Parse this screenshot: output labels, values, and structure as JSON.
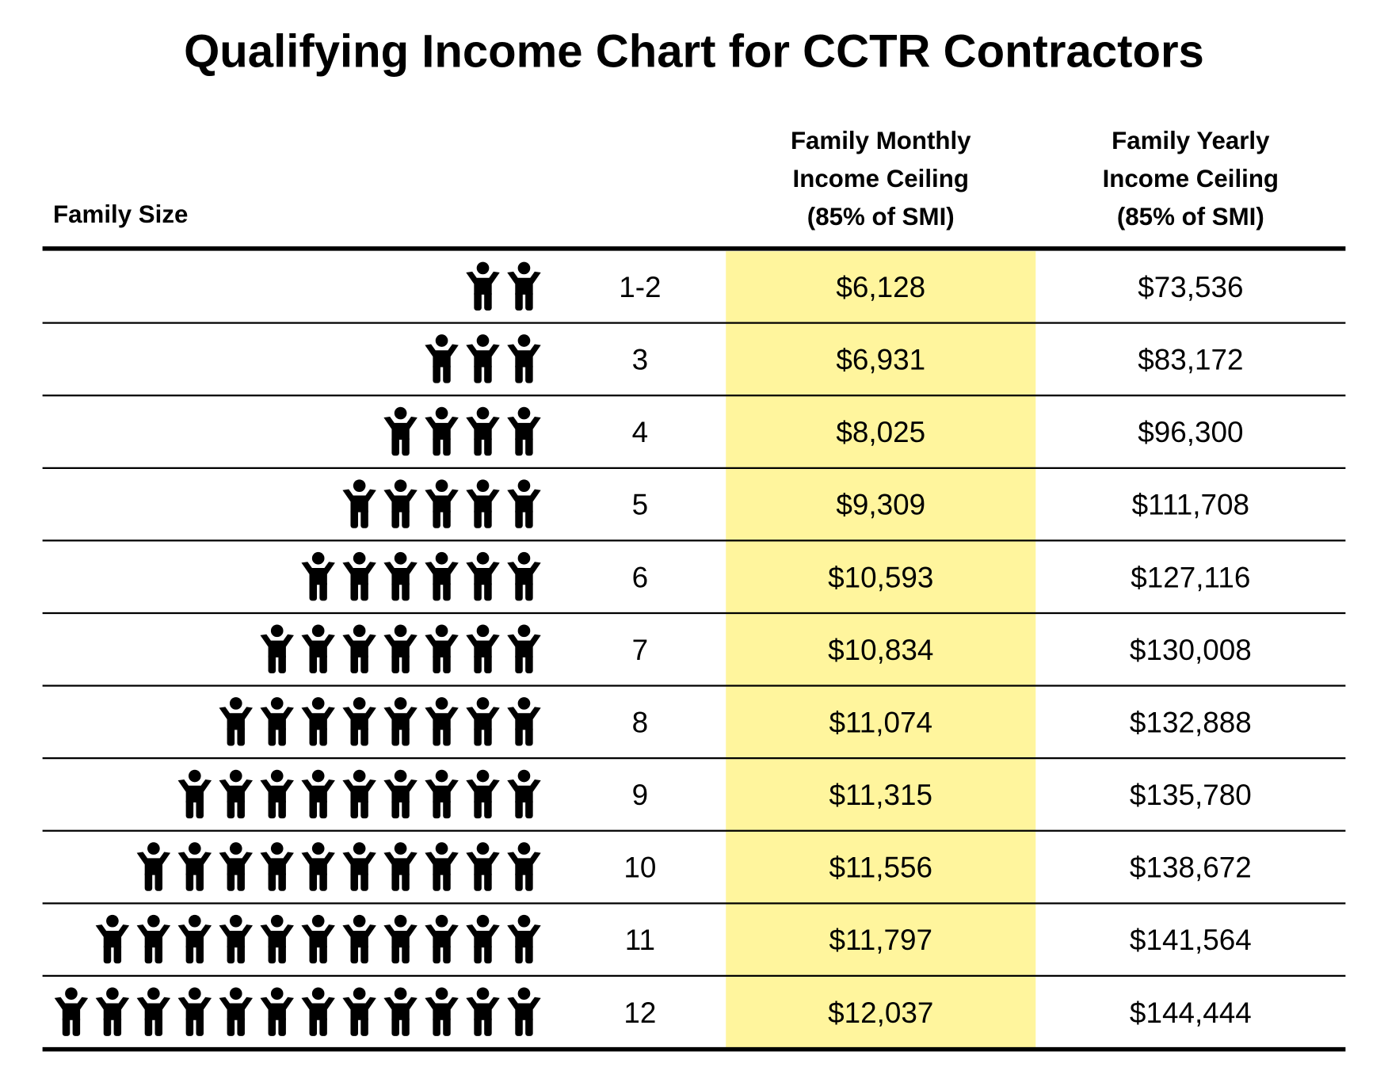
{
  "title": "Qualifying Income Chart for CCTR Contractors",
  "table": {
    "headers": {
      "family_size": "Family Size",
      "monthly": [
        "Family Monthly",
        "Income Ceiling",
        "(85% of SMI)"
      ],
      "yearly": [
        "Family Yearly",
        "Income Ceiling",
        "(85% of SMI)"
      ]
    },
    "rows": [
      {
        "size": "1-2",
        "icons": 2,
        "monthly": "$6,128",
        "yearly": "$73,536"
      },
      {
        "size": "3",
        "icons": 3,
        "monthly": "$6,931",
        "yearly": "$83,172"
      },
      {
        "size": "4",
        "icons": 4,
        "monthly": "$8,025",
        "yearly": "$96,300"
      },
      {
        "size": "5",
        "icons": 5,
        "monthly": "$9,309",
        "yearly": "$111,708"
      },
      {
        "size": "6",
        "icons": 6,
        "monthly": "$10,593",
        "yearly": "$127,116"
      },
      {
        "size": "7",
        "icons": 7,
        "monthly": "$10,834",
        "yearly": "$130,008"
      },
      {
        "size": "8",
        "icons": 8,
        "monthly": "$11,074",
        "yearly": "$132,888"
      },
      {
        "size": "9",
        "icons": 9,
        "monthly": "$11,315",
        "yearly": "$135,780"
      },
      {
        "size": "10",
        "icons": 10,
        "monthly": "$11,556",
        "yearly": "$138,672"
      },
      {
        "size": "11",
        "icons": 11,
        "monthly": "$11,797",
        "yearly": "$141,564"
      },
      {
        "size": "12",
        "icons": 12,
        "monthly": "$12,037",
        "yearly": "$144,444"
      }
    ]
  }
}
